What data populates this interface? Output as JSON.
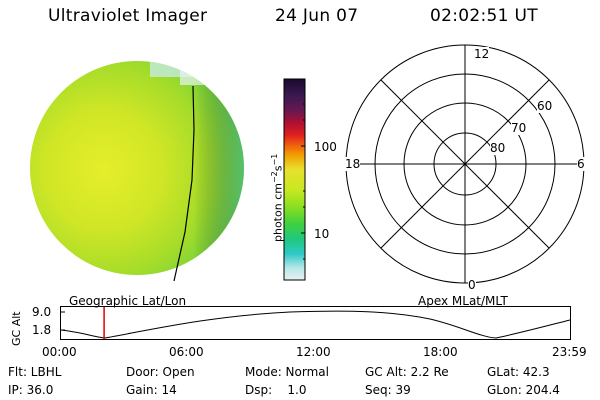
{
  "header": {
    "instrument": "Ultraviolet Imager",
    "date": "24 Jun 07",
    "time": "02:02:51 UT"
  },
  "colorbar": {
    "unit_main": "photon cm",
    "unit_exp1": "−2",
    "unit_mid": "s",
    "unit_exp2": "−1",
    "ticks": [
      "100",
      "10"
    ],
    "colors": [
      "#1a0a2e",
      "#3a1850",
      "#6a1850",
      "#b01030",
      "#e02020",
      "#f06010",
      "#f0a000",
      "#e8e030",
      "#c8e820",
      "#8fe020",
      "#40d040",
      "#20c880",
      "#30c8c8",
      "#b8e8e8",
      "#e8f0f0"
    ]
  },
  "polar_plot": {
    "labels": {
      "mlt_top": "12",
      "mlt_bottom": "0",
      "mlt_left": "18",
      "mlt_right": "6"
    },
    "lat_labels": [
      "60",
      "70",
      "80"
    ]
  },
  "projections": {
    "left": "Geographic Lat/Lon",
    "right": "Apex MLat/MLT"
  },
  "timeline": {
    "ylabel": "GC Alt",
    "y_top": "9.0",
    "y_bottom": "1.8",
    "x_ticks": [
      "00:00",
      "06:00",
      "12:00",
      "18:00",
      "23:59"
    ],
    "current_time_hours": 2.05
  },
  "footer": {
    "filter": "Flt: LBHL",
    "ip": "IP: 36.0",
    "door": "Door: Open",
    "gain": "Gain: 14",
    "mode": "Mode: Normal",
    "dsp_label": "Dsp:",
    "dsp_value": "1.0",
    "gc_alt": "GC Alt: 2.2 Re",
    "seq": "Seq: 39",
    "glat": "GLat: 42.3",
    "glon": "GLon: 204.4"
  }
}
